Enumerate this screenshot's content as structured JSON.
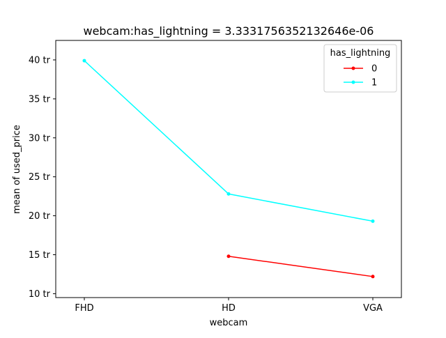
{
  "chart_data": {
    "type": "line",
    "title": "webcam:has_lightning = 3.3331756352132646e-06",
    "xlabel": "webcam",
    "ylabel": "mean of used_price",
    "categories": [
      "FHD",
      "HD",
      "VGA"
    ],
    "y_ticks": [
      10,
      15,
      20,
      25,
      30,
      35,
      40
    ],
    "y_tick_labels": [
      "10 tr",
      "15 tr",
      "20 tr",
      "25 tr",
      "30 tr",
      "35 tr",
      "40 tr"
    ],
    "ylim": [
      9.5,
      42.5
    ],
    "grid": false,
    "legend": {
      "title": "has_lightning",
      "placement": "top-right"
    },
    "series": [
      {
        "name": "0",
        "color": "#ff0000",
        "values": [
          null,
          14.8,
          12.2
        ]
      },
      {
        "name": "1",
        "color": "#00ffff",
        "values": [
          39.9,
          22.8,
          19.3
        ]
      }
    ]
  }
}
